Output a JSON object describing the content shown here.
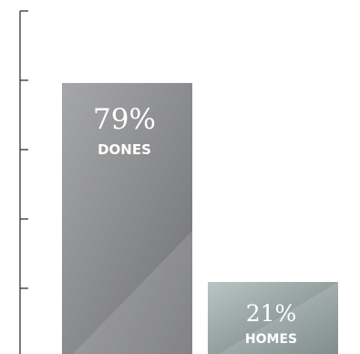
{
  "chart_data": {
    "type": "bar",
    "categories": [
      "DONES",
      "HOMES"
    ],
    "values": [
      79,
      21
    ],
    "value_labels": [
      "79%",
      "21%"
    ],
    "title": "",
    "xlabel": "",
    "ylabel": "",
    "ylim": [
      0,
      100
    ],
    "grid": false,
    "legend": "none",
    "colors": {
      "DONES": [
        "#a6a7a9",
        "#707174"
      ],
      "HOMES": [
        "#b9c5c4",
        "#6f7d7c"
      ],
      "axis": "#333333"
    }
  }
}
